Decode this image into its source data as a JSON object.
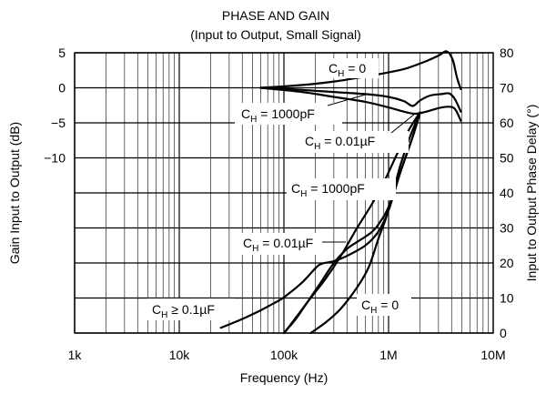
{
  "chart_data": {
    "type": "line",
    "title": "PHASE AND GAIN",
    "subtitle": "(Input to Output, Small Signal)",
    "xlabel": "Frequency (Hz)",
    "ylabel_left": "Gain Input to Output (dB)",
    "ylabel_right": "Input to Output Phase Delay (°)",
    "x_scale": "log",
    "xlim": [
      1000,
      10000000
    ],
    "x_ticks": [
      1000,
      10000,
      100000,
      1000000,
      10000000
    ],
    "x_tick_labels": [
      "1k",
      "10k",
      "100k",
      "1M",
      "10M"
    ],
    "y_right_lim": [
      0,
      80
    ],
    "y_right_ticks": [
      0,
      10,
      20,
      30,
      40,
      50,
      60,
      70,
      80
    ],
    "y_right_tick_labels": [
      "0",
      "10",
      "20",
      "30",
      "40",
      "50",
      "60",
      "70",
      "80"
    ],
    "y_left_ticks": [
      5,
      0,
      -5,
      -10
    ],
    "y_left_tick_labels": [
      "5",
      "0",
      "−5",
      "−10"
    ],
    "y_left_tick_positions_in_right_units": [
      80,
      70,
      60,
      50
    ],
    "grid": true,
    "gain_series": [
      {
        "label": "C_H = 0",
        "points": [
          [
            60000,
            0
          ],
          [
            150000,
            0.4
          ],
          [
            300000,
            0.9
          ],
          [
            600000,
            1.6
          ],
          [
            1000000,
            2.2
          ],
          [
            1500000,
            2.8
          ],
          [
            2200000,
            3.7
          ],
          [
            3000000,
            4.6
          ],
          [
            3600000,
            5.2
          ],
          [
            4100000,
            4.0
          ],
          [
            4500000,
            1.5
          ],
          [
            4900000,
            -0.2
          ]
        ]
      },
      {
        "label": "C_H = 1000pF",
        "points": [
          [
            60000,
            0
          ],
          [
            150000,
            -0.3
          ],
          [
            300000,
            -0.6
          ],
          [
            600000,
            -0.9
          ],
          [
            1000000,
            -1.3
          ],
          [
            1400000,
            -1.9
          ],
          [
            1700000,
            -2.6
          ],
          [
            2000000,
            -1.8
          ],
          [
            2500000,
            -1.1
          ],
          [
            3200000,
            -0.9
          ],
          [
            3800000,
            -0.8
          ],
          [
            4300000,
            -1.6
          ],
          [
            4900000,
            -3.4
          ]
        ]
      },
      {
        "label": "C_H = 0.01µF",
        "points": [
          [
            60000,
            0
          ],
          [
            150000,
            -0.6
          ],
          [
            300000,
            -1.3
          ],
          [
            600000,
            -2.0
          ],
          [
            1000000,
            -2.8
          ],
          [
            1400000,
            -3.4
          ],
          [
            1800000,
            -3.7
          ],
          [
            2300000,
            -3.4
          ],
          [
            3000000,
            -2.9
          ],
          [
            3700000,
            -2.7
          ],
          [
            4300000,
            -3.0
          ],
          [
            4900000,
            -4.7
          ]
        ]
      }
    ],
    "phase_series": [
      {
        "label": "C_H ≥ 0.1µF",
        "points": [
          [
            25000,
            1.5
          ],
          [
            40000,
            4
          ],
          [
            60000,
            6.5
          ],
          [
            80000,
            8.5
          ],
          [
            100000,
            10.2
          ],
          [
            150000,
            14.5
          ],
          [
            200000,
            18.5
          ],
          [
            230000,
            19.8
          ],
          [
            300000,
            20.5
          ],
          [
            400000,
            22
          ],
          [
            600000,
            25
          ],
          [
            800000,
            29
          ],
          [
            1000000,
            35
          ],
          [
            1300000,
            46
          ],
          [
            1700000,
            56
          ],
          [
            2000000,
            63
          ]
        ]
      },
      {
        "label": "C_H = 1000pF",
        "points": [
          [
            100000,
            0
          ],
          [
            130000,
            4
          ],
          [
            170000,
            9
          ],
          [
            250000,
            15.5
          ],
          [
            350000,
            22
          ],
          [
            500000,
            30
          ],
          [
            700000,
            37
          ],
          [
            900000,
            43
          ],
          [
            1200000,
            51
          ],
          [
            1500000,
            57
          ],
          [
            1800000,
            61
          ],
          [
            2000000,
            63
          ]
        ]
      },
      {
        "label": "C_H = 0.01µF",
        "points": [
          [
            100000,
            0
          ],
          [
            120000,
            3
          ],
          [
            160000,
            8
          ],
          [
            220000,
            14
          ],
          [
            300000,
            20
          ],
          [
            400000,
            24
          ],
          [
            500000,
            26
          ],
          [
            600000,
            27.5
          ],
          [
            700000,
            29
          ],
          [
            800000,
            31
          ],
          [
            1000000,
            36
          ],
          [
            1300000,
            46
          ],
          [
            1700000,
            56
          ],
          [
            2000000,
            63
          ]
        ]
      },
      {
        "label": "C_H = 0",
        "points": [
          [
            180000,
            0
          ],
          [
            250000,
            3
          ],
          [
            350000,
            7
          ],
          [
            500000,
            13
          ],
          [
            650000,
            19
          ],
          [
            800000,
            27
          ],
          [
            950000,
            33
          ],
          [
            1100000,
            40
          ],
          [
            1300000,
            48
          ],
          [
            1600000,
            56
          ],
          [
            2000000,
            63
          ]
        ]
      }
    ],
    "annotations": [
      {
        "label": "C_H = 0"
      },
      {
        "label": "C_H = 1000pF"
      },
      {
        "label": "C_H = 0.01µF"
      },
      {
        "label": "C_H = 1000pF"
      },
      {
        "label": "C_H = 0.01µF"
      },
      {
        "label": "C_H ≥ 0.1µF"
      },
      {
        "label": "C_H = 0"
      }
    ]
  }
}
